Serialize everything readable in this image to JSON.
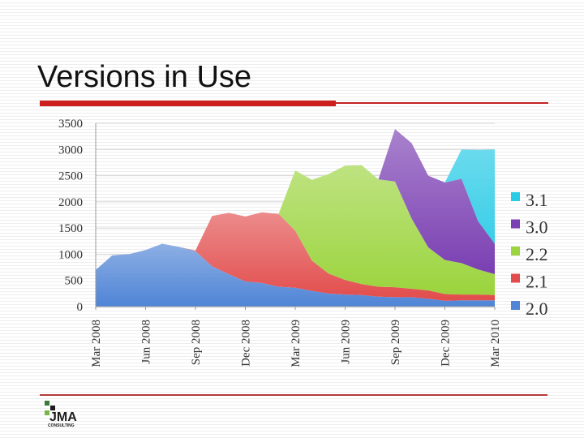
{
  "slide": {
    "title": "Versions in Use",
    "footer_logo_text": "JMA",
    "footer_logo_subtext": "CONSULTING",
    "accent_color": "#cc1f1f"
  },
  "chart_data": {
    "type": "area",
    "stacked": true,
    "x": [
      "Mar 2008",
      "Apr 2008",
      "May 2008",
      "Jun 2008",
      "Jul 2008",
      "Aug 2008",
      "Sep 2008",
      "Oct 2008",
      "Nov 2008",
      "Dec 2008",
      "Jan 2009",
      "Feb 2009",
      "Mar 2009",
      "Apr 2009",
      "May 2009",
      "Jun 2009",
      "Jul 2009",
      "Aug 2009",
      "Sep 2009",
      "Oct 2009",
      "Nov 2009",
      "Dec 2009",
      "Jan 2010",
      "Feb 2010",
      "Mar 2010"
    ],
    "tick_labels": [
      "Mar 2008",
      "Jun 2008",
      "Sep 2008",
      "Dec 2008",
      "Mar 2009",
      "Jun 2009",
      "Sep 2009",
      "Dec 2009",
      "Mar 2010"
    ],
    "ylim": [
      0,
      3500
    ],
    "yticks": [
      0,
      500,
      1000,
      1500,
      2000,
      2500,
      3000,
      3500
    ],
    "grid": true,
    "legend_position": "right",
    "series": [
      {
        "name": "2.0",
        "color": "#4f84d6",
        "values": [
          700,
          980,
          1000,
          1080,
          1200,
          1140,
          1060,
          770,
          620,
          480,
          450,
          380,
          360,
          300,
          250,
          230,
          220,
          190,
          180,
          180,
          150,
          110,
          120,
          120,
          120
        ]
      },
      {
        "name": "2.1",
        "color": "#e24c4c",
        "values": [
          0,
          0,
          0,
          0,
          0,
          0,
          10,
          960,
          1170,
          1240,
          1350,
          1390,
          1090,
          580,
          380,
          280,
          210,
          190,
          190,
          160,
          160,
          130,
          110,
          110,
          100
        ]
      },
      {
        "name": "2.2",
        "color": "#9bd43d",
        "values": [
          0,
          0,
          0,
          0,
          0,
          0,
          0,
          0,
          0,
          0,
          0,
          0,
          1150,
          1540,
          1900,
          2180,
          2270,
          2050,
          2020,
          1340,
          820,
          650,
          600,
          480,
          400
        ]
      },
      {
        "name": "3.0",
        "color": "#7a3fb2",
        "values": [
          0,
          0,
          0,
          0,
          0,
          0,
          0,
          0,
          0,
          0,
          0,
          0,
          0,
          0,
          0,
          0,
          0,
          0,
          1000,
          1440,
          1370,
          1480,
          1610,
          920,
          580
        ]
      },
      {
        "name": "3.1",
        "color": "#2bcbe6",
        "values": [
          0,
          0,
          0,
          0,
          0,
          0,
          0,
          0,
          0,
          0,
          0,
          0,
          0,
          0,
          0,
          0,
          0,
          0,
          0,
          0,
          0,
          0,
          560,
          1360,
          1800
        ]
      }
    ]
  }
}
